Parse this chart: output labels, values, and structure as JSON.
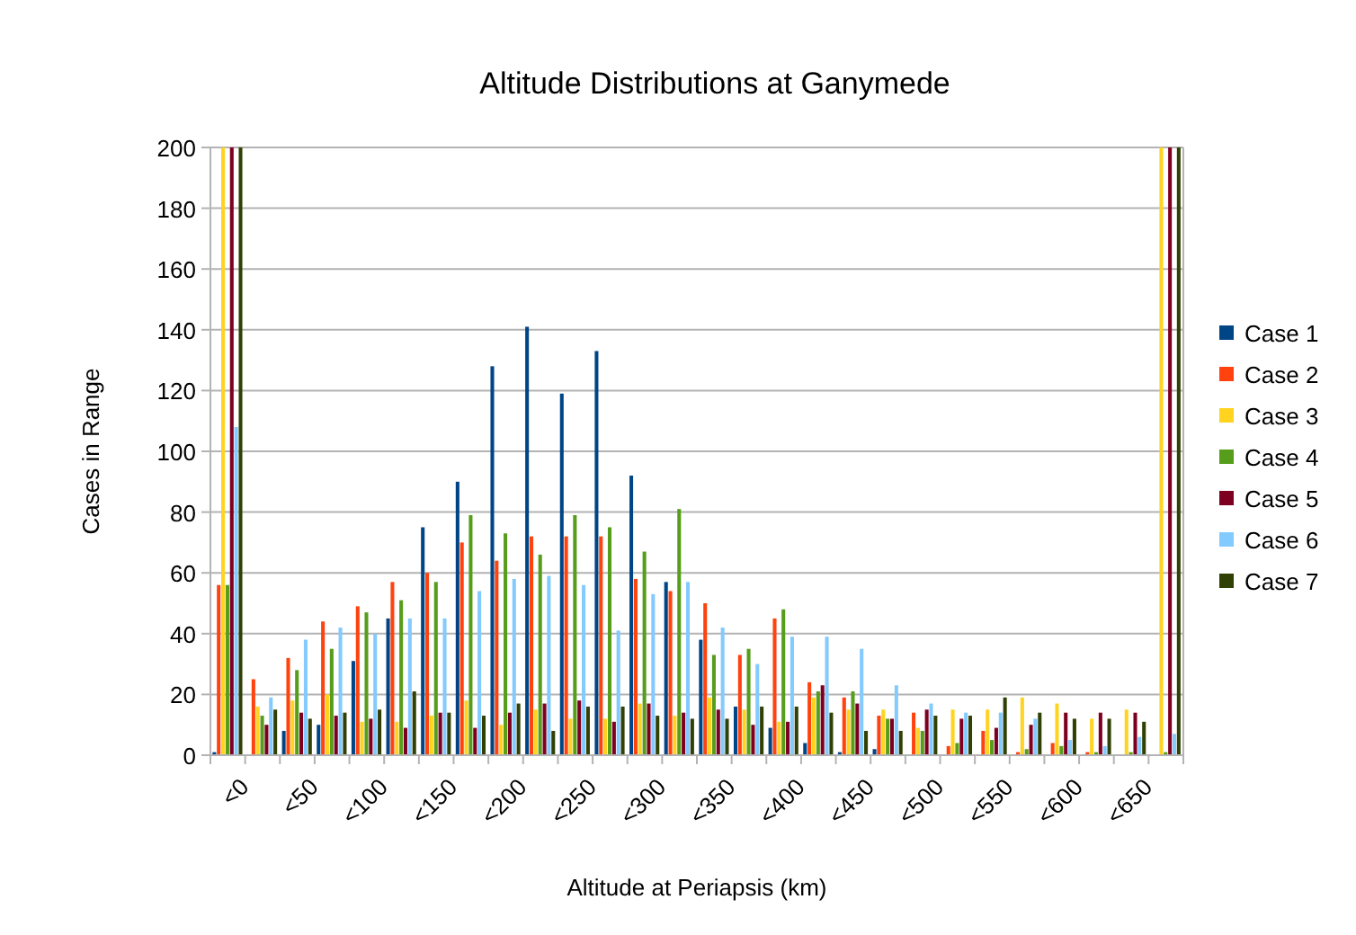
{
  "chart_data": {
    "type": "bar",
    "title": "Altitude Distributions at Ganymede",
    "xlabel": "Altitude at Periapsis (km)",
    "ylabel": "Cases in Range",
    "categories": [
      "<0",
      null,
      "<50",
      null,
      "<100",
      null,
      "<150",
      null,
      "<200",
      null,
      "<250",
      null,
      "<300",
      null,
      "<350",
      null,
      "<400",
      null,
      "<450",
      null,
      "<500",
      null,
      "<550",
      null,
      "<600",
      null,
      "<650",
      null
    ],
    "series": [
      {
        "name": "Case 1",
        "color": "#004586",
        "values": [
          1,
          0,
          8,
          10,
          31,
          45,
          75,
          90,
          128,
          141,
          119,
          133,
          92,
          57,
          38,
          16,
          9,
          4,
          1,
          2,
          0,
          0,
          0,
          0,
          0,
          0,
          0,
          0
        ]
      },
      {
        "name": "Case 2",
        "color": "#ff420e",
        "values": [
          56,
          25,
          32,
          44,
          49,
          57,
          60,
          70,
          64,
          72,
          72,
          72,
          58,
          54,
          50,
          33,
          45,
          24,
          19,
          13,
          14,
          3,
          8,
          1,
          4,
          1,
          0,
          0
        ]
      },
      {
        "name": "Case 3",
        "color": "#ffd320",
        "values": [
          200,
          16,
          18,
          20,
          11,
          11,
          13,
          18,
          10,
          15,
          12,
          12,
          17,
          13,
          19,
          15,
          11,
          19,
          15,
          15,
          9,
          15,
          15,
          19,
          17,
          12,
          15,
          200
        ]
      },
      {
        "name": "Case 4",
        "color": "#579d1c",
        "values": [
          56,
          13,
          28,
          35,
          47,
          51,
          57,
          79,
          73,
          66,
          79,
          75,
          67,
          81,
          33,
          35,
          48,
          21,
          21,
          12,
          8,
          4,
          5,
          2,
          3,
          1,
          1,
          1
        ]
      },
      {
        "name": "Case 5",
        "color": "#7e0021",
        "values": [
          200,
          10,
          14,
          13,
          12,
          9,
          14,
          9,
          14,
          17,
          18,
          11,
          17,
          14,
          15,
          10,
          11,
          23,
          17,
          12,
          15,
          12,
          9,
          10,
          14,
          14,
          14,
          200
        ]
      },
      {
        "name": "Case 6",
        "color": "#83caff",
        "values": [
          108,
          19,
          38,
          42,
          40,
          45,
          45,
          54,
          58,
          59,
          56,
          41,
          53,
          57,
          42,
          30,
          39,
          39,
          35,
          23,
          17,
          14,
          14,
          12,
          5,
          3,
          6,
          7
        ]
      },
      {
        "name": "Case 7",
        "color": "#314004",
        "values": [
          200,
          15,
          12,
          14,
          15,
          21,
          14,
          13,
          17,
          8,
          16,
          16,
          13,
          12,
          12,
          16,
          16,
          14,
          8,
          8,
          13,
          13,
          19,
          14,
          12,
          12,
          11,
          200
        ]
      }
    ],
    "ylim": [
      0,
      200
    ],
    "yticks": [
      0,
      20,
      40,
      60,
      80,
      100,
      120,
      140,
      160,
      180,
      200
    ],
    "grid": "y",
    "legend": "right"
  }
}
